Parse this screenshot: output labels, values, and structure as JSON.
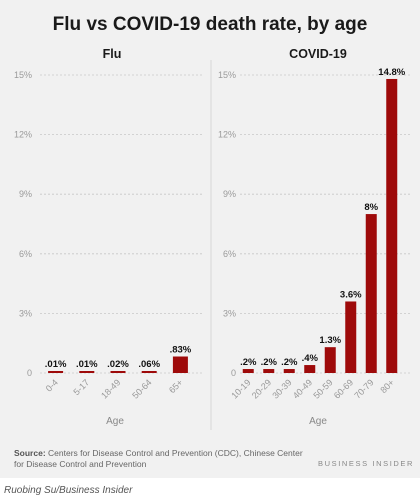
{
  "title": "Flu vs COVID-19 death rate, by age",
  "source_label": "Source:",
  "source_text": "Centers for Disease Control and Prevention (CDC), Chinese Center for Disease Control and Prevention",
  "brand": "BUSINESS INSIDER",
  "credit": "Ruobing Su/Business Insider",
  "colors": {
    "bar": "#9e0a0a",
    "grid": "#c8c8c8",
    "background": "#f1f1f1"
  },
  "chart_data": [
    {
      "type": "bar",
      "title": "Flu",
      "xlabel": "Age",
      "ylabel": "",
      "ylim": [
        0,
        15
      ],
      "yticks": [
        0,
        3,
        6,
        9,
        12,
        15
      ],
      "ytick_labels": [
        "0",
        "3%",
        "6%",
        "9%",
        "12%",
        "15%"
      ],
      "categories": [
        "0-4",
        "5-17",
        "18-49",
        "50-64",
        "65+"
      ],
      "values": [
        0.01,
        0.01,
        0.02,
        0.06,
        0.83
      ],
      "data_labels": [
        ".01%",
        ".01%",
        ".02%",
        ".06%",
        ".83%"
      ],
      "grid": true
    },
    {
      "type": "bar",
      "title": "COVID-19",
      "xlabel": "Age",
      "ylabel": "",
      "ylim": [
        0,
        15
      ],
      "yticks": [
        0,
        3,
        6,
        9,
        12,
        15
      ],
      "ytick_labels": [
        "0",
        "3%",
        "6%",
        "9%",
        "12%",
        "15%"
      ],
      "categories": [
        "10-19",
        "20-29",
        "30-39",
        "40-49",
        "50-59",
        "60-69",
        "70-79",
        "80+"
      ],
      "values": [
        0.2,
        0.2,
        0.2,
        0.4,
        1.3,
        3.6,
        8,
        14.8
      ],
      "data_labels": [
        ".2%",
        ".2%",
        ".2%",
        ".4%",
        "1.3%",
        "3.6%",
        "8%",
        "14.8%"
      ],
      "grid": true
    }
  ]
}
